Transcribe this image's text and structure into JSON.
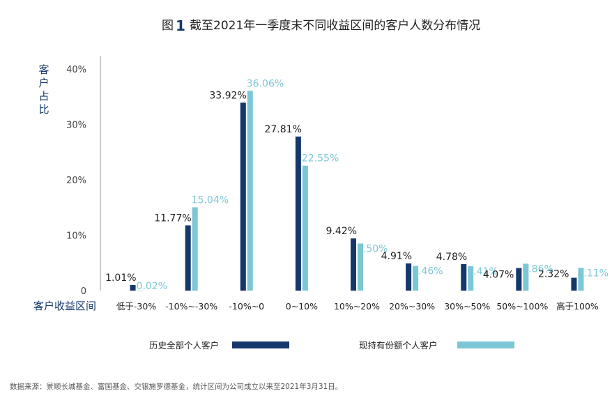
{
  "figure_label": "图",
  "figure_number": "1",
  "chart_data": {
    "type": "bar",
    "title": "截至2021年一季度末不同收益区间的客户人数分布情况",
    "ylabel": "客户占比",
    "xlabel": "客户收益区间",
    "ylim": [
      0,
      40
    ],
    "yticks": [
      "0",
      "10%",
      "20%",
      "30%",
      "40%"
    ],
    "ytick_values": [
      0,
      10,
      20,
      30,
      40
    ],
    "categories": [
      "低于-30%",
      "-10%~-30%",
      "-10%~0",
      "0~10%",
      "10%~20%",
      "20%~30%",
      "30%~50%",
      "50%~100%",
      "高于100%"
    ],
    "series": [
      {
        "name": "历史全部个人客户",
        "color": "#14386b",
        "values": [
          1.01,
          11.77,
          33.92,
          27.81,
          9.42,
          4.91,
          4.78,
          4.07,
          2.32
        ],
        "labels": [
          "1.01%",
          "11.77%",
          "33.92%",
          "27.81%",
          "9.42%",
          "4.91%",
          "4.78%",
          "4.07%",
          "2.32%"
        ]
      },
      {
        "name": "现持有份额个人客户",
        "color": "#7cc7d6",
        "values": [
          0.02,
          15.04,
          36.06,
          22.55,
          8.5,
          4.46,
          4.41,
          4.86,
          4.11
        ],
        "labels": [
          "0.02%",
          "15.04%",
          "36.06%",
          "22.55%",
          "8.50%",
          "4.46%",
          "4.41%",
          "4.86%",
          "4.11%"
        ]
      }
    ],
    "legend_position": "bottom",
    "grid": false
  },
  "source_note": "数据来源：景顺长城基金、富国基金、交银施罗德基金，统计区间为公司成立以来至2021年3月31日。"
}
